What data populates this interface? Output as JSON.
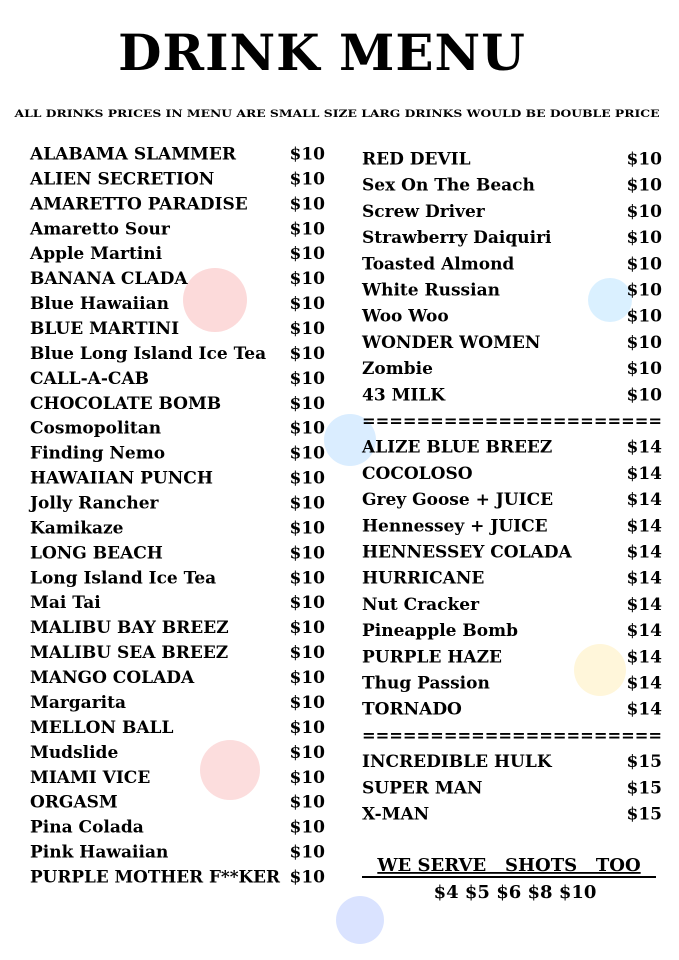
{
  "header": {
    "title": "DRINK MENU",
    "note": "ALL DRINKS  PRICES IN MENU ARE SMALL SIZE LARG DRINKS WOULD BE DOUBLE PRICE"
  },
  "left_column": {
    "items": [
      {
        "name": "ALABAMA SLAMMER",
        "price": "$10"
      },
      {
        "name": "ALIEN SECRETION",
        "price": "$10"
      },
      {
        "name": "AMARETTO PARADISE",
        "price": "$10"
      },
      {
        "name": "Amaretto Sour",
        "price": "$10"
      },
      {
        "name": "Apple Martini",
        "price": "$10"
      },
      {
        "name": "BANANA CLADA",
        "price": "$10"
      },
      {
        "name": "Blue Hawaiian",
        "price": "$10"
      },
      {
        "name": "BLUE MARTINI",
        "price": "$10"
      },
      {
        "name": "Blue Long Island Ice Tea",
        "price": "$10"
      },
      {
        "name": "CALL-A-CAB",
        "price": "$10"
      },
      {
        "name": "CHOCOLATE BOMB",
        "price": "$10"
      },
      {
        "name": "Cosmopolitan",
        "price": "$10"
      },
      {
        "name": "Finding Nemo",
        "price": "$10"
      },
      {
        "name": "HAWAIIAN PUNCH",
        "price": "$10"
      },
      {
        "name": "Jolly Rancher",
        "price": "$10"
      },
      {
        "name": "Kamikaze",
        "price": "$10"
      },
      {
        "name": "LONG BEACH",
        "price": "$10"
      },
      {
        "name": "Long Island Ice Tea",
        "price": "$10"
      },
      {
        "name": "Mai Tai",
        "price": "$10"
      },
      {
        "name": "MALIBU BAY BREEZ",
        "price": "$10"
      },
      {
        "name": "MALIBU SEA BREEZ",
        "price": "$10"
      },
      {
        "name": "MANGO COLADA",
        "price": "$10"
      },
      {
        "name": "Margarita",
        "price": "$10"
      },
      {
        "name": "MELLON BALL",
        "price": "$10"
      },
      {
        "name": "Mudslide",
        "price": "$10"
      },
      {
        "name": "MIAMI VICE",
        "price": "$10"
      },
      {
        "name": "ORGASM",
        "price": "$10"
      },
      {
        "name": "Pina Colada",
        "price": "$10"
      },
      {
        "name": "Pink Hawaiian",
        "price": "$10"
      },
      {
        "name": "PURPLE MOTHER F**KER",
        "price": "$10"
      }
    ]
  },
  "right_column": {
    "sections": [
      {
        "items": [
          {
            "name": "RED DEVIL",
            "price": "$10"
          },
          {
            "name": "Sex On The Beach",
            "price": "$10"
          },
          {
            "name": "Screw Driver",
            "price": "$10"
          },
          {
            "name": "Strawberry Daiquiri",
            "price": "$10"
          },
          {
            "name": "Toasted Almond",
            "price": "$10"
          },
          {
            "name": "White Russian",
            "price": "$10"
          },
          {
            "name": "Woo Woo",
            "price": "$10"
          },
          {
            "name": "WONDER WOMEN",
            "price": "$10"
          },
          {
            "name": "Zombie",
            "price": "$10"
          },
          {
            "name": "43 MILK",
            "price": "$10"
          }
        ]
      },
      {
        "separator": "======================",
        "items": [
          {
            "name": "ALIZE BLUE BREEZ",
            "price": "$14"
          },
          {
            "name": "COCOLOSO",
            "price": "$14"
          },
          {
            "name": "Grey Goose + JUICE",
            "price": "$14"
          },
          {
            "name": "Hennessey + JUICE",
            "price": "$14"
          },
          {
            "name": "HENNESSEY COLADA",
            "price": "$14"
          },
          {
            "name": "HURRICANE",
            "price": "$14"
          },
          {
            "name": "Nut Cracker",
            "price": "$14"
          },
          {
            "name": "Pineapple Bomb",
            "price": "$14"
          },
          {
            "name": "PURPLE HAZE",
            "price": "$14"
          },
          {
            "name": "Thug Passion",
            "price": "$14"
          },
          {
            "name": "TORNADO",
            "price": "$14"
          }
        ]
      },
      {
        "separator": "======================",
        "items": [
          {
            "name": "INCREDIBLE HULK",
            "price": "$15"
          },
          {
            "name": "SUPER MAN",
            "price": "$15"
          },
          {
            "name": "X-MAN",
            "price": "$15"
          }
        ]
      }
    ]
  },
  "footer": {
    "heading": "WE SERVE   SHOTS   TOO",
    "prices": "$4 $5 $6 $8 $10"
  }
}
